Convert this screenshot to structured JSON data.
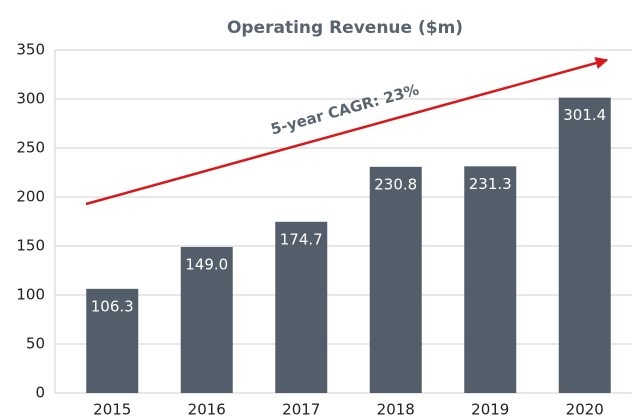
{
  "chart_data": {
    "type": "bar",
    "title": "Operating Revenue ($m)",
    "annotation": "5-year CAGR: 23%",
    "categories": [
      "2015",
      "2016",
      "2017",
      "2018",
      "2019",
      "2020"
    ],
    "values": [
      106.3,
      149,
      174.7,
      230.8,
      231.3,
      301.4
    ],
    "value_labels": [
      "106.3",
      "149.0",
      "174.7",
      "230.8",
      "231.3",
      "301.4"
    ],
    "color": "#535e6a",
    "ylim": [
      0,
      350
    ],
    "yticks": [
      0,
      50,
      100,
      150,
      200,
      250,
      300,
      350
    ],
    "grid": true
  }
}
